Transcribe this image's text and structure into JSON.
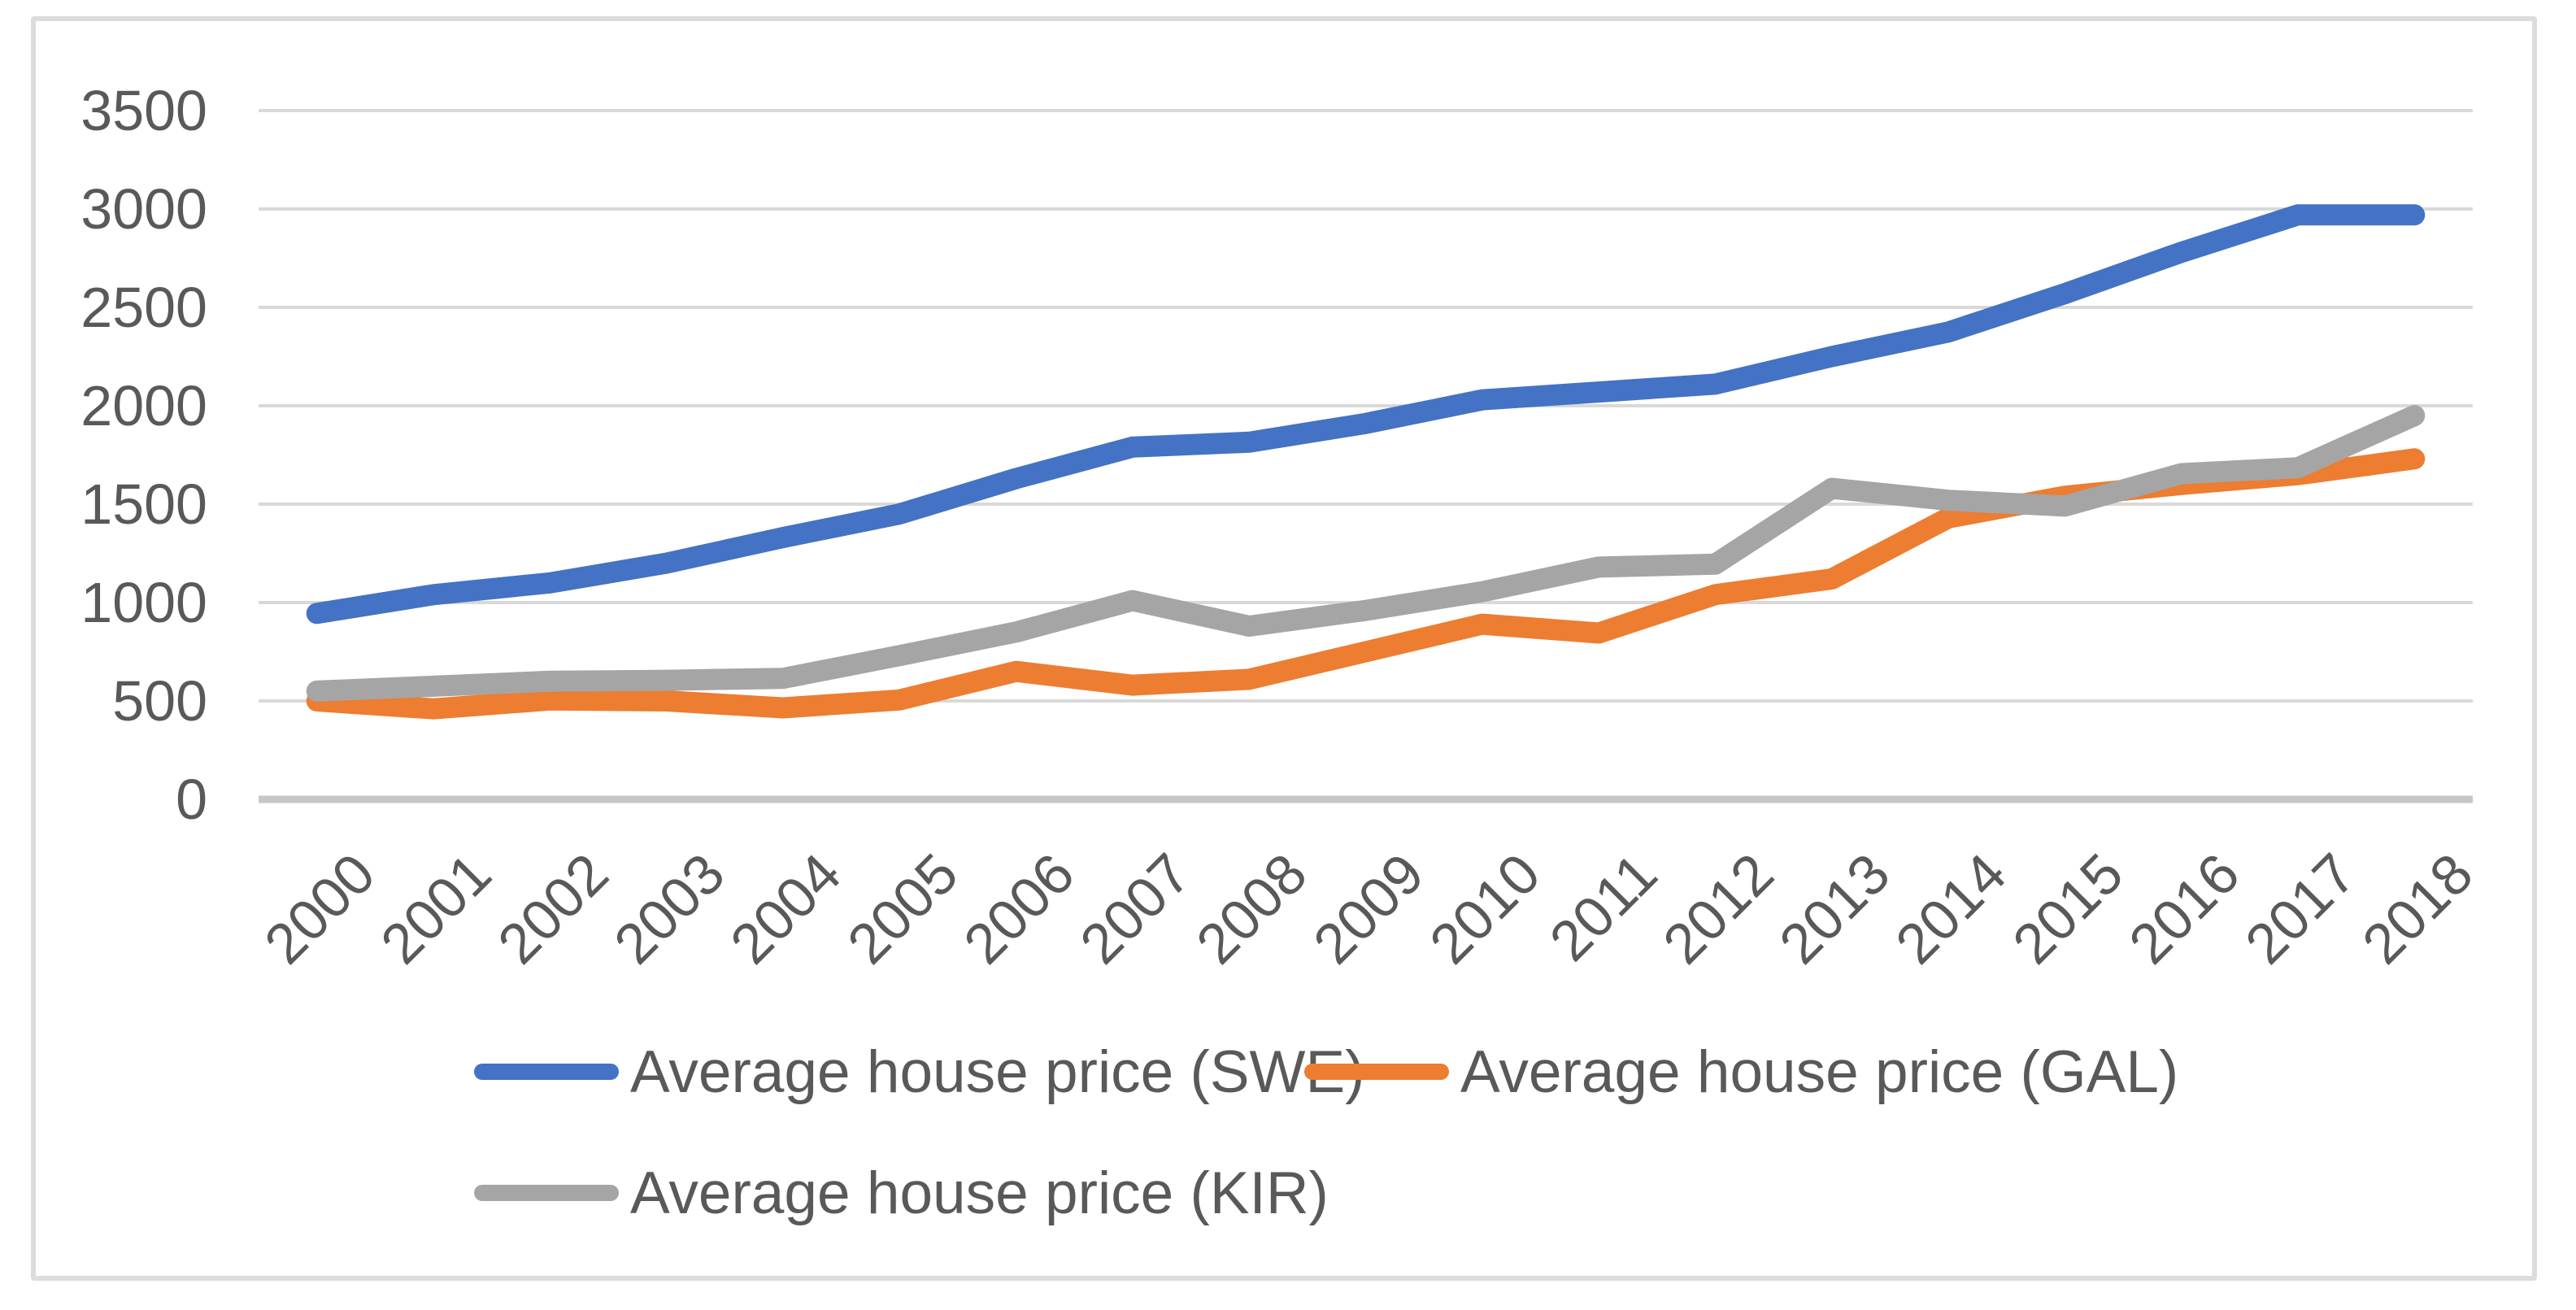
{
  "chart_data": {
    "type": "line",
    "title": "",
    "xlabel": "",
    "ylabel": "",
    "ylim": [
      0,
      3500
    ],
    "ytick_step": 500,
    "grid": true,
    "legend_position": "bottom",
    "y_tick_labels": [
      "0",
      "500",
      "1000",
      "1500",
      "2000",
      "2500",
      "3000",
      "3500"
    ],
    "categories": [
      "2000",
      "2001",
      "2002",
      "2003",
      "2004",
      "2005",
      "2006",
      "2007",
      "2008",
      "2009",
      "2010",
      "2011",
      "2012",
      "2013",
      "2014",
      "2015",
      "2016",
      "2017",
      "2018"
    ],
    "series": [
      {
        "name": "Average house price (SWE)",
        "color": "#4472C4",
        "values": [
          945,
          1040,
          1100,
          1200,
          1330,
          1450,
          1630,
          1790,
          1815,
          1910,
          2030,
          2070,
          2110,
          2250,
          2375,
          2570,
          2780,
          2970,
          2970
        ]
      },
      {
        "name": "Average house price (GAL)",
        "color": "#ED7D31",
        "values": [
          500,
          460,
          505,
          500,
          465,
          505,
          650,
          580,
          610,
          750,
          890,
          845,
          1040,
          1120,
          1430,
          1540,
          1600,
          1650,
          1730
        ]
      },
      {
        "name": "Average house price (KIR)",
        "color": "#A5A5A5",
        "values": [
          550,
          575,
          600,
          605,
          615,
          730,
          850,
          1010,
          880,
          960,
          1055,
          1180,
          1195,
          1580,
          1520,
          1490,
          1655,
          1685,
          1950
        ]
      }
    ],
    "styles": {
      "gridline_color": "#D9D9D9",
      "axis_line_color": "#C6C6C6",
      "tick_label_color": "#595959",
      "legend_text_color": "#595959",
      "frame_border_color": "#DCDCDC",
      "background": "#FFFFFF"
    }
  }
}
